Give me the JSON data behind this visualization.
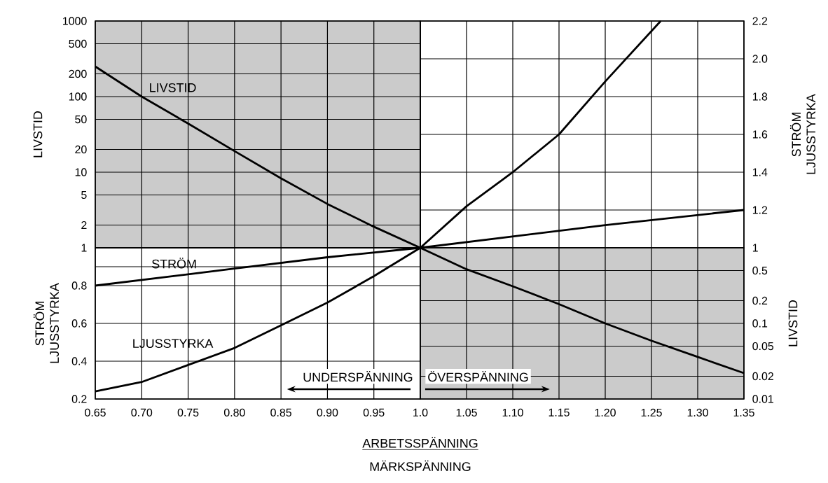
{
  "chart_data": [
    {
      "type": "line",
      "ylabel": "LIVSTID",
      "log": "y",
      "grid": true,
      "tick_labels": "y",
      "xlim": [
        0.65,
        1.0
      ],
      "xticks": [
        0.65,
        0.7,
        0.75,
        0.8,
        0.85,
        0.9,
        0.95,
        1.0
      ],
      "ylim": [
        1,
        1000
      ],
      "yticks": [
        1,
        2,
        5,
        10,
        20,
        50,
        100,
        200,
        500,
        1000
      ],
      "bands": [
        {
          "axis": "x",
          "from": 0.65,
          "to": 1.0,
          "color": "#cbcbcb"
        }
      ],
      "series": [
        {
          "name": "LIVSTID",
          "color": "#000000",
          "x": [
            0.65,
            0.7,
            0.75,
            0.8,
            0.85,
            0.9,
            0.95,
            1.0
          ],
          "values": [
            250,
            100,
            44,
            19,
            8.3,
            3.8,
            1.9,
            1
          ]
        }
      ]
    },
    {
      "type": "line",
      "ylabel": "STRÖM LJUSSTYRKA",
      "grid": true,
      "tick_labels": "y",
      "xlim": [
        1.0,
        1.35
      ],
      "xticks": [
        1.0,
        1.05,
        1.1,
        1.15,
        1.2,
        1.25,
        1.3,
        1.35
      ],
      "ylim": [
        1,
        2.2
      ],
      "yticks": [
        {
          "value": 1,
          "label": null
        },
        1.2,
        1.4,
        1.6,
        1.8,
        {
          "value": 2,
          "label": "2.0"
        },
        2.2
      ],
      "series": [
        {
          "color": "#000000",
          "x": [
            1.0,
            1.05,
            1.1,
            1.15,
            1.2,
            1.26
          ],
          "values": [
            1,
            1.22,
            1.4,
            1.6,
            1.88,
            2.2
          ]
        },
        {
          "color": "#000000",
          "x": [
            1.0,
            1.2,
            1.35
          ],
          "values": [
            1,
            1.12,
            1.2
          ]
        }
      ]
    },
    {
      "type": "line",
      "xlabel": "ARBETSSPÄNNING",
      "ylabel": "STRÖM LJUSSTYRKA",
      "grid": true,
      "xlim": [
        0.65,
        1.0
      ],
      "xticks": [
        0.65,
        {
          "value": 0.7,
          "label": "0.70"
        },
        0.75,
        {
          "value": 0.8,
          "label": "0.80"
        },
        0.85,
        {
          "value": 0.9,
          "label": "0.90"
        },
        0.95,
        {
          "value": 1.0,
          "label": "1.0"
        }
      ],
      "ylim": [
        0.2,
        1
      ],
      "yticks": [
        0.2,
        0.4,
        0.6,
        0.8,
        {
          "value": 0.9,
          "label": null
        },
        {
          "value": 1,
          "label": null
        }
      ],
      "annotations": [
        "UNDERSPÄNNING",
        "MÄRKSPÄNNING"
      ],
      "series": [
        {
          "name": "STRÖM",
          "color": "#000000",
          "x": [
            0.65,
            0.75,
            0.8,
            0.9,
            1.0
          ],
          "values": [
            0.8,
            0.86,
            0.89,
            0.95,
            1
          ]
        },
        {
          "name": "LJUSSTYRKA",
          "color": "#000000",
          "x": [
            0.65,
            0.7,
            0.75,
            0.8,
            0.85,
            0.9,
            0.95,
            1.0
          ],
          "values": [
            0.24,
            0.29,
            0.38,
            0.47,
            0.59,
            0.71,
            0.85,
            1
          ]
        }
      ]
    },
    {
      "type": "line",
      "ylabel": "LIVSTID",
      "log": "y",
      "grid": true,
      "xlim": [
        1.0,
        1.35
      ],
      "xticks": [
        {
          "value": 1.0,
          "label": null
        },
        1.05,
        {
          "value": 1.1,
          "label": "1.10"
        },
        1.15,
        {
          "value": 1.2,
          "label": "1.20"
        },
        1.25,
        {
          "value": 1.3,
          "label": "1.30"
        },
        1.35
      ],
      "ylim": [
        0.01,
        1
      ],
      "yticks": [
        0.01,
        0.02,
        0.05,
        0.1,
        0.2,
        0.5,
        1
      ],
      "annotations": [
        "ÖVERSPÄNNING"
      ],
      "bands": [
        {
          "axis": "x",
          "from": 1.0,
          "to": 1.35,
          "color": "#cbcbcb"
        }
      ],
      "series": [
        {
          "color": "#000000",
          "x": [
            1.0,
            1.05,
            1.1,
            1.15,
            1.2,
            1.25,
            1.3,
            1.35
          ],
          "values": [
            1,
            0.52,
            0.31,
            0.18,
            0.1,
            0.059,
            0.036,
            0.022
          ]
        }
      ]
    }
  ]
}
